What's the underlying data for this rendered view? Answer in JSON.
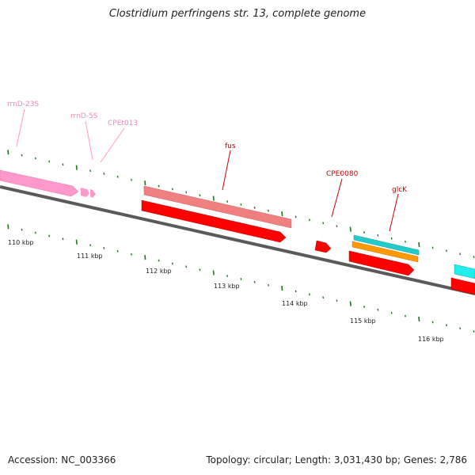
{
  "title": "Clostridium perfringens str. 13, complete genome",
  "footer": {
    "accession": "Accession: NC_003366",
    "summary": "Topology: circular; Length: 3,031,430 bp; Genes: 2,786"
  },
  "colors": {
    "backbone": "#7a7a7a",
    "tick": "#1a7a1a",
    "rrna": "#ff99cc",
    "rrna_label": "#ee88bb",
    "trna_label": "#ee88bb",
    "cds": "#ff0000",
    "cds_light": "#f08080",
    "gene_label": "#cc0000",
    "cyan": "#22cccc",
    "orange": "#ff9900"
  },
  "ruler": {
    "labels": [
      "110 kbp",
      "111 kbp",
      "112 kbp",
      "113 kbp",
      "114 kbp",
      "115 kbp",
      "116 kbp"
    ]
  },
  "features": {
    "rrnD-23S": "rrnD-23S",
    "rrnD-5S": "rrnD-5S",
    "CPEt013": "CPEt013",
    "fus": "fus",
    "CPE0080": "CPE0080",
    "glcK": "glcK"
  }
}
